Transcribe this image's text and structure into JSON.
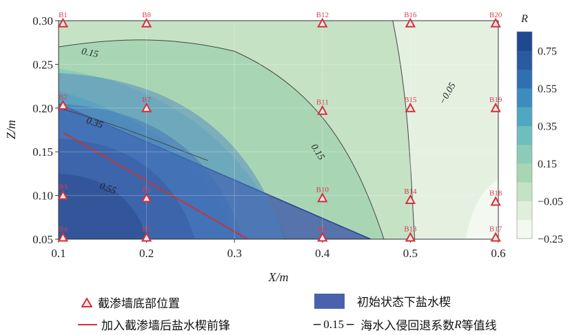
{
  "chart_data": {
    "type": "contour",
    "xlabel": "X/m",
    "ylabel": "Z/m",
    "xlim": [
      0.1,
      0.6
    ],
    "ylim": [
      0.05,
      0.3
    ],
    "x_ticks": [
      "0.1",
      "0.2",
      "0.3",
      "0.4",
      "0.5",
      "0.6"
    ],
    "y_ticks": [
      "0.05",
      "0.10",
      "0.15",
      "0.20",
      "0.25",
      "0.30"
    ],
    "colorbar": {
      "title": "R",
      "ticks": [
        "0.75",
        "0.55",
        "0.35",
        "0.15",
        "−0.05",
        "−0.25"
      ],
      "range": [
        -0.25,
        0.85
      ]
    },
    "stations": [
      {
        "name": "B1",
        "x": 0.105,
        "z": 0.297
      },
      {
        "name": "B8",
        "x": 0.2,
        "z": 0.297
      },
      {
        "name": "B12",
        "x": 0.4,
        "z": 0.297
      },
      {
        "name": "B16",
        "x": 0.5,
        "z": 0.297
      },
      {
        "name": "B20",
        "x": 0.597,
        "z": 0.297
      },
      {
        "name": "B2",
        "x": 0.105,
        "z": 0.203
      },
      {
        "name": "B7",
        "x": 0.2,
        "z": 0.2
      },
      {
        "name": "B11",
        "x": 0.4,
        "z": 0.197
      },
      {
        "name": "B15",
        "x": 0.5,
        "z": 0.2
      },
      {
        "name": "B19",
        "x": 0.597,
        "z": 0.2
      },
      {
        "name": "B3",
        "x": 0.105,
        "z": 0.1
      },
      {
        "name": "B6",
        "x": 0.2,
        "z": 0.097
      },
      {
        "name": "B10",
        "x": 0.4,
        "z": 0.097
      },
      {
        "name": "B14",
        "x": 0.5,
        "z": 0.095
      },
      {
        "name": "B18",
        "x": 0.597,
        "z": 0.093
      },
      {
        "name": "B4",
        "x": 0.105,
        "z": 0.052
      },
      {
        "name": "B5",
        "x": 0.2,
        "z": 0.052
      },
      {
        "name": "B9",
        "x": 0.4,
        "z": 0.052
      },
      {
        "name": "B13",
        "x": 0.5,
        "z": 0.052
      },
      {
        "name": "B17",
        "x": 0.597,
        "z": 0.052
      }
    ],
    "contour_labels": [
      {
        "text": "0.15",
        "x": 0.135,
        "z": 0.26,
        "angle": 12
      },
      {
        "text": "0.35",
        "x": 0.14,
        "z": 0.18,
        "angle": 18
      },
      {
        "text": "0.55",
        "x": 0.155,
        "z": 0.105,
        "angle": 20
      },
      {
        "text": "0.15",
        "x": 0.392,
        "z": 0.148,
        "angle": 58
      },
      {
        "text": "−0.05",
        "x": 0.545,
        "z": 0.215,
        "angle": -60
      }
    ],
    "initial_wedge_toe_x": 0.455,
    "initial_wedge_top_z": 0.205,
    "front_line": [
      [
        0.105,
        0.172
      ],
      [
        0.315,
        0.05
      ]
    ],
    "legend": {
      "station": "截渗墙底部位置",
      "wedge": "初始状态下盐水楔",
      "front": "加入截渗墙后盐水楔前锋",
      "contour_sample": "0.15",
      "contour": "海水入侵回退系数",
      "contour_var": "R",
      "contour_suffix": "等值线"
    }
  }
}
